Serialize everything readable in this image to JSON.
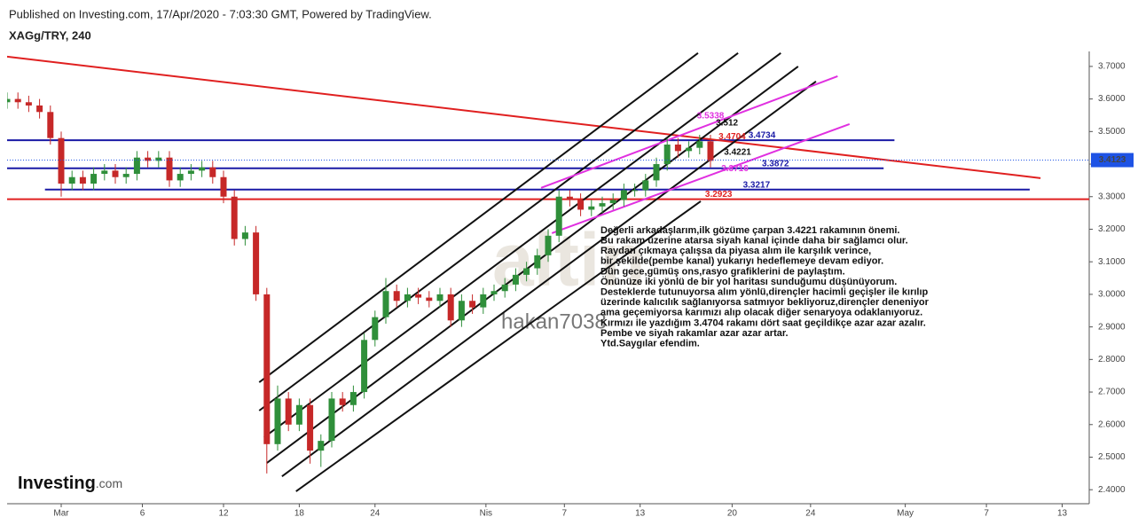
{
  "chart_data": {
    "type": "candlestick",
    "header": "Published on Investing.com, 17/Apr/2020 - 7:03:30 GMT, Powered by TradingView.",
    "symbol": "XAGg/TRY, 240",
    "xlim": [
      0,
      200
    ],
    "ylim": [
      2.357,
      3.746
    ],
    "xticks": [
      {
        "value": 10,
        "label": "Mar"
      },
      {
        "value": 25,
        "label": "6"
      },
      {
        "value": 40,
        "label": "12"
      },
      {
        "value": 54,
        "label": "18"
      },
      {
        "value": 68,
        "label": "24"
      },
      {
        "value": 88.5,
        "label": "Nis"
      },
      {
        "value": 103,
        "label": "7"
      },
      {
        "value": 117,
        "label": "13"
      },
      {
        "value": 134,
        "label": "20"
      },
      {
        "value": 148.5,
        "label": "24"
      },
      {
        "value": 166,
        "label": "May"
      },
      {
        "value": 181,
        "label": "7"
      },
      {
        "value": 195,
        "label": "13"
      }
    ],
    "yticks": [
      {
        "value": 2.4,
        "label": "2.4000"
      },
      {
        "value": 2.5,
        "label": "2.5000"
      },
      {
        "value": 2.6,
        "label": "2.6000"
      },
      {
        "value": 2.7,
        "label": "2.7000"
      },
      {
        "value": 2.8,
        "label": "2.8000"
      },
      {
        "value": 2.9,
        "label": "2.9000"
      },
      {
        "value": 3.0,
        "label": "3.0000"
      },
      {
        "value": 3.1,
        "label": "3.1000"
      },
      {
        "value": 3.2,
        "label": "3.2000"
      },
      {
        "value": 3.3,
        "label": "3.3000"
      },
      {
        "value": 3.4,
        "label": "3.4000"
      },
      {
        "value": 3.5,
        "label": "3.5000"
      },
      {
        "value": 3.6,
        "label": "3.6000"
      },
      {
        "value": 3.7,
        "label": "3.7000"
      }
    ],
    "up_color": "#2f8f3a",
    "down_color": "#c62828",
    "x": [
      0,
      2,
      4,
      6,
      8,
      10,
      12,
      14,
      16,
      18,
      20,
      22,
      24,
      26,
      28,
      30,
      32,
      34,
      36,
      38,
      40,
      42,
      44,
      46,
      48,
      50,
      52,
      54,
      56,
      58,
      60,
      62,
      64,
      66,
      68,
      70,
      72,
      74,
      76,
      78,
      80,
      82,
      84,
      86,
      88,
      90,
      92,
      94,
      96,
      98,
      100,
      102,
      104,
      106,
      108,
      110,
      112,
      114,
      116,
      118,
      120,
      122,
      124,
      126,
      128,
      130
    ],
    "open": [
      3.59,
      3.6,
      3.59,
      3.58,
      3.56,
      3.48,
      3.34,
      3.36,
      3.34,
      3.37,
      3.38,
      3.36,
      3.37,
      3.42,
      3.41,
      3.42,
      3.35,
      3.37,
      3.38,
      3.39,
      3.36,
      3.3,
      3.17,
      3.19,
      3.0,
      2.54,
      2.68,
      2.6,
      2.66,
      2.52,
      2.55,
      2.68,
      2.66,
      2.7,
      2.86,
      2.93,
      3.01,
      2.98,
      3.0,
      2.99,
      2.98,
      3.0,
      2.92,
      2.98,
      2.96,
      3.0,
      3.01,
      3.03,
      3.06,
      3.08,
      3.12,
      3.18,
      3.3,
      3.29,
      3.26,
      3.27,
      3.28,
      3.29,
      3.32,
      3.32,
      3.35,
      3.4,
      3.46,
      3.44,
      3.45,
      3.47
    ],
    "high": [
      3.62,
      3.62,
      3.61,
      3.6,
      3.58,
      3.5,
      3.38,
      3.38,
      3.39,
      3.4,
      3.4,
      3.39,
      3.44,
      3.44,
      3.44,
      3.44,
      3.39,
      3.4,
      3.41,
      3.41,
      3.38,
      3.32,
      3.21,
      3.21,
      3.02,
      2.72,
      2.7,
      2.68,
      2.68,
      2.57,
      2.7,
      2.7,
      2.72,
      2.88,
      2.95,
      3.05,
      3.03,
      3.02,
      3.02,
      3.01,
      3.02,
      3.02,
      3.0,
      3.0,
      3.02,
      3.03,
      3.05,
      3.08,
      3.1,
      3.14,
      3.2,
      3.32,
      3.32,
      3.31,
      3.29,
      3.3,
      3.31,
      3.34,
      3.34,
      3.37,
      3.42,
      3.48,
      3.48,
      3.47,
      3.49,
      3.49
    ],
    "low": [
      3.57,
      3.57,
      3.56,
      3.54,
      3.46,
      3.3,
      3.32,
      3.32,
      3.32,
      3.35,
      3.34,
      3.34,
      3.35,
      3.39,
      3.39,
      3.33,
      3.33,
      3.35,
      3.36,
      3.34,
      3.28,
      3.15,
      3.15,
      2.98,
      2.45,
      2.52,
      2.58,
      2.58,
      2.48,
      2.47,
      2.53,
      2.64,
      2.64,
      2.68,
      2.84,
      2.91,
      2.96,
      2.96,
      2.97,
      2.96,
      2.96,
      2.9,
      2.9,
      2.94,
      2.94,
      2.98,
      2.99,
      3.01,
      3.04,
      3.06,
      3.1,
      3.16,
      3.27,
      3.24,
      3.24,
      3.25,
      3.26,
      3.27,
      3.3,
      3.3,
      3.33,
      3.38,
      3.42,
      3.42,
      3.43,
      3.39
    ],
    "close": [
      3.6,
      3.59,
      3.58,
      3.56,
      3.48,
      3.34,
      3.36,
      3.34,
      3.37,
      3.38,
      3.36,
      3.37,
      3.42,
      3.41,
      3.42,
      3.35,
      3.37,
      3.38,
      3.39,
      3.36,
      3.3,
      3.17,
      3.19,
      3.0,
      2.54,
      2.68,
      2.6,
      2.66,
      2.52,
      2.55,
      2.68,
      2.66,
      2.7,
      2.86,
      2.93,
      3.01,
      2.98,
      3.0,
      2.99,
      2.98,
      3.0,
      2.92,
      2.98,
      2.96,
      3.0,
      3.01,
      3.03,
      3.06,
      3.08,
      3.12,
      3.18,
      3.3,
      3.29,
      3.26,
      3.27,
      3.28,
      3.29,
      3.32,
      3.32,
      3.35,
      3.4,
      3.46,
      3.44,
      3.45,
      3.47,
      3.41
    ],
    "last_price": 3.4123,
    "last_price_color": "#1e53e5",
    "levels": [
      {
        "value": 3.4734,
        "x": [
          0,
          164
        ],
        "color": "#1a1aa6"
      },
      {
        "value": 3.3872,
        "x": [
          0,
          162
        ],
        "color": "#1a1aa6"
      },
      {
        "value": 3.3217,
        "x": [
          7,
          189
        ],
        "color": "#1a1aa6"
      },
      {
        "value": 3.2923,
        "x": [
          0,
          200
        ],
        "color": "#e02020"
      }
    ],
    "trendlines": [
      {
        "x": [
          0,
          191
        ],
        "y": [
          3.73,
          3.357
        ],
        "color": "#e02020"
      },
      {
        "x": [
          46.6,
          127.7
        ],
        "y": [
          2.73,
          3.741
        ],
        "color": "#111111"
      },
      {
        "x": [
          46.6,
          135.1
        ],
        "y": [
          2.643,
          3.741
        ],
        "color": "#111111"
      },
      {
        "x": [
          47.5,
          143.0
        ],
        "y": [
          2.561,
          3.741
        ],
        "color": "#111111"
      },
      {
        "x": [
          48.0,
          146.2
        ],
        "y": [
          2.482,
          3.7
        ],
        "color": "#111111"
      },
      {
        "x": [
          50.8,
          149.5
        ],
        "y": [
          2.441,
          3.654
        ],
        "color": "#111111"
      },
      {
        "x": [
          53.4,
          128.2
        ],
        "y": [
          2.395,
          3.286
        ],
        "color": "#111111"
      },
      {
        "x": [
          98.7,
          153.5
        ],
        "y": [
          3.327,
          3.67
        ],
        "color": "#e030e0"
      },
      {
        "x": [
          100.7,
          155.7
        ],
        "y": [
          3.188,
          3.523
        ],
        "color": "#e030e0"
      }
    ],
    "annotations": [
      {
        "value": 3.5338,
        "x": 127.5,
        "color": "#e030e0"
      },
      {
        "value": 3.512,
        "x": 131,
        "color": "#111111"
      },
      {
        "value": 3.4704,
        "x": 131.5,
        "color": "#e02020"
      },
      {
        "value": 3.4734,
        "x": 137,
        "color": "#1a1aa6"
      },
      {
        "value": 3.4221,
        "x": 132.5,
        "color": "#111111"
      },
      {
        "value": 3.3872,
        "x": 139.5,
        "color": "#1a1aa6"
      },
      {
        "value": 3.3716,
        "x": 132,
        "color": "#e030e0"
      },
      {
        "value": 3.3217,
        "x": 136,
        "color": "#1a1aa6"
      },
      {
        "value": 3.2923,
        "x": 129,
        "color": "#e02020"
      }
    ],
    "note": [
      "Değerli arkadaşlarım,ilk gözüme çarpan 3.4221 rakamının önemi.",
      "Bu rakam üzerine atarsa siyah kanal içinde daha bir sağlamcı olur.",
      "Raydan çıkmaya çalışsa da piyasa alım ile karşılık verince,",
      "bir şekilde(pembe kanal) yukarıyı hedeflemeye devam ediyor.",
      "Dün gece,gümüş ons,rasyo grafiklerini de paylaştım.",
      "Önünüze iki yönlü de bir yol haritası sunduğumu düşünüyorum.",
      "Desteklerde tutunuyorsa alım yönlü,dirençler hacimli geçişler ile kırılıp",
      "üzerinde kalıcılık sağlanıyorsa satmıyor bekliyoruz,dirençler deneniyor",
      "ama geçemiyorsa karımızı alıp olacak diğer senaryoya odaklanıyoruz.",
      "Kırmızı ile yazdığım 3.4704 rakamı dört saat geçildikçe azar azar azalır.",
      "Pembe ve siyah rakamlar azar azar artar.",
      "Ytd.Saygılar efendim."
    ],
    "watermark_logo": "altin",
    "watermark_user": "hakan7038",
    "brand": "Investing",
    "brand_suffix": ".com"
  }
}
